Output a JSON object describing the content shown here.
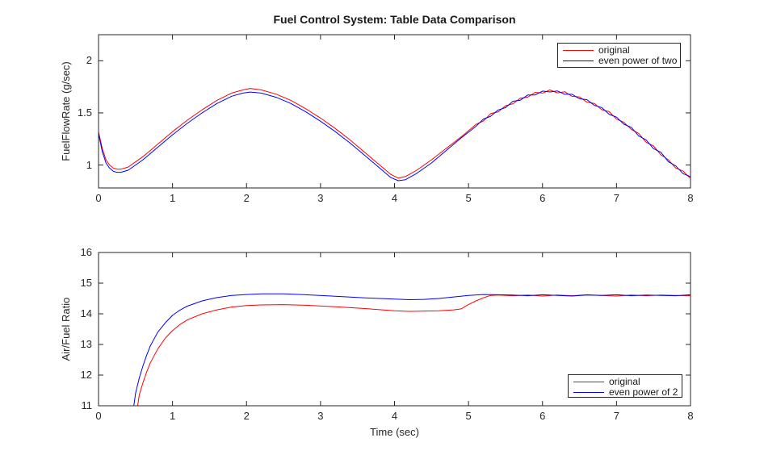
{
  "figure_title": "Fuel Control System: Table Data Comparison",
  "colors": {
    "original": "#ff0000",
    "quantized": "#0000ff",
    "axis": "#262626",
    "background": "#ffffff"
  },
  "chart_data": [
    {
      "type": "line",
      "title": "Fuel Control System: Table Data Comparison",
      "xlabel": "",
      "ylabel": "FuelFlowRate (g/sec)",
      "xlim": [
        0,
        8
      ],
      "ylim": [
        0.78,
        2.25
      ],
      "xticks": [
        0,
        1,
        2,
        3,
        4,
        5,
        6,
        7,
        8
      ],
      "xtick_labels": [
        "0",
        "1",
        "2",
        "3",
        "4",
        "5",
        "6",
        "7",
        "8"
      ],
      "yticks": [
        1,
        1.5,
        2
      ],
      "ytick_labels": [
        "1",
        "1.5",
        "2"
      ],
      "grid": false,
      "legend": {
        "position": "top-right",
        "entries": [
          "original",
          "even power of two"
        ]
      },
      "series": [
        {
          "name": "original",
          "color": "#ff0000",
          "x": [
            0,
            0.05,
            0.1,
            0.15,
            0.2,
            0.25,
            0.3,
            0.4,
            0.5,
            0.6,
            0.8,
            1,
            1.2,
            1.4,
            1.6,
            1.8,
            1.95,
            2.05,
            2.2,
            2.4,
            2.6,
            2.8,
            3,
            3.2,
            3.4,
            3.6,
            3.8,
            3.95,
            4.05,
            4.15,
            4.3,
            4.5,
            4.7,
            4.9,
            5.1,
            5.2,
            5.3,
            5.4,
            5.5,
            5.6,
            5.7,
            5.8,
            5.9,
            6,
            6.1,
            6.2,
            6.3,
            6.4,
            6.5,
            6.6,
            6.7,
            6.8,
            6.9,
            7,
            7.1,
            7.2,
            7.3,
            7.4,
            7.5,
            7.6,
            7.7,
            7.8,
            7.9,
            8
          ],
          "y": [
            1.32,
            1.16,
            1.05,
            1.0,
            0.97,
            0.96,
            0.96,
            0.98,
            1.03,
            1.08,
            1.2,
            1.32,
            1.43,
            1.53,
            1.62,
            1.69,
            1.72,
            1.735,
            1.72,
            1.68,
            1.62,
            1.54,
            1.45,
            1.35,
            1.24,
            1.12,
            1.0,
            0.91,
            0.875,
            0.89,
            0.95,
            1.05,
            1.16,
            1.27,
            1.39,
            1.422,
            1.493,
            1.509,
            1.568,
            1.588,
            1.641,
            1.651,
            1.697,
            1.69,
            1.72,
            1.692,
            1.703,
            1.659,
            1.653,
            1.603,
            1.591,
            1.531,
            1.512,
            1.44,
            1.41,
            1.342,
            1.303,
            1.219,
            1.182,
            1.098,
            1.051,
            0.971,
            0.942,
            0.87
          ]
        },
        {
          "name": "even power of two",
          "color": "#0000ff",
          "x": [
            0,
            0.05,
            0.1,
            0.15,
            0.2,
            0.25,
            0.3,
            0.4,
            0.5,
            0.6,
            0.8,
            1,
            1.2,
            1.4,
            1.6,
            1.8,
            1.95,
            2.05,
            2.2,
            2.4,
            2.6,
            2.8,
            3,
            3.2,
            3.4,
            3.6,
            3.8,
            3.95,
            4.05,
            4.15,
            4.3,
            4.5,
            4.7,
            4.9,
            5.1,
            5.2,
            5.3,
            5.4,
            5.5,
            5.6,
            5.7,
            5.8,
            5.9,
            6,
            6.1,
            6.2,
            6.3,
            6.4,
            6.5,
            6.6,
            6.7,
            6.8,
            6.9,
            7,
            7.1,
            7.2,
            7.3,
            7.4,
            7.5,
            7.6,
            7.7,
            7.8,
            7.9,
            8
          ],
          "y": [
            1.3,
            1.13,
            1.02,
            0.97,
            0.94,
            0.93,
            0.93,
            0.95,
            1.0,
            1.05,
            1.17,
            1.29,
            1.4,
            1.5,
            1.59,
            1.66,
            1.69,
            1.7,
            1.69,
            1.65,
            1.59,
            1.51,
            1.42,
            1.32,
            1.21,
            1.09,
            0.97,
            0.88,
            0.85,
            0.86,
            0.92,
            1.02,
            1.14,
            1.26,
            1.371,
            1.441,
            1.468,
            1.528,
            1.55,
            1.612,
            1.622,
            1.671,
            1.672,
            1.709,
            1.701,
            1.711,
            1.678,
            1.678,
            1.635,
            1.627,
            1.572,
            1.551,
            1.487,
            1.459,
            1.391,
            1.362,
            1.278,
            1.241,
            1.157,
            1.122,
            1.032,
            0.991,
            0.917,
            0.889
          ]
        }
      ]
    },
    {
      "type": "line",
      "title": "",
      "xlabel": "Time (sec)",
      "ylabel": "Air/Fuel Ratio",
      "xlim": [
        0,
        8
      ],
      "ylim": [
        11,
        16
      ],
      "xticks": [
        0,
        1,
        2,
        3,
        4,
        5,
        6,
        7,
        8
      ],
      "xtick_labels": [
        "0",
        "1",
        "2",
        "3",
        "4",
        "5",
        "6",
        "7",
        "8"
      ],
      "yticks": [
        11,
        12,
        13,
        14,
        15,
        16
      ],
      "ytick_labels": [
        "11",
        "12",
        "13",
        "14",
        "15",
        "16"
      ],
      "grid": false,
      "legend": {
        "position": "bottom-right",
        "entries": [
          "original",
          "even power of 2"
        ]
      },
      "series": [
        {
          "name": "original",
          "color": "#ff0000",
          "x": [
            0.47,
            0.55,
            0.6,
            0.65,
            0.7,
            0.8,
            0.9,
            1,
            1.1,
            1.2,
            1.4,
            1.6,
            1.8,
            2,
            2.2,
            2.5,
            2.8,
            3.2,
            3.6,
            4,
            4.2,
            4.4,
            4.6,
            4.8,
            4.9,
            5,
            5.1,
            5.2,
            5.3,
            5.4,
            5.6,
            5.8,
            6,
            6.2,
            6.4,
            6.6,
            6.8,
            7,
            7.2,
            7.4,
            7.6,
            7.8,
            8
          ],
          "y": [
            10.0,
            11.35,
            11.75,
            12.1,
            12.4,
            12.85,
            13.2,
            13.45,
            13.65,
            13.8,
            14.0,
            14.13,
            14.22,
            14.27,
            14.29,
            14.3,
            14.28,
            14.23,
            14.17,
            14.1,
            14.08,
            14.09,
            14.1,
            14.13,
            14.16,
            14.3,
            14.42,
            14.52,
            14.6,
            14.61,
            14.59,
            14.61,
            14.58,
            14.61,
            14.59,
            14.62,
            14.6,
            14.58,
            14.61,
            14.59,
            14.61,
            14.6,
            14.59
          ]
        },
        {
          "name": "even power of 2",
          "color": "#0000ff",
          "x": [
            0.42,
            0.5,
            0.55,
            0.6,
            0.65,
            0.7,
            0.8,
            0.9,
            1,
            1.1,
            1.2,
            1.4,
            1.6,
            1.8,
            2,
            2.2,
            2.5,
            2.8,
            3.2,
            3.6,
            4,
            4.2,
            4.4,
            4.6,
            4.8,
            5,
            5.2,
            5.4,
            5.6,
            5.8,
            6,
            6.2,
            6.4,
            6.6,
            6.8,
            7,
            7.2,
            7.4,
            7.6,
            7.8,
            8
          ],
          "y": [
            10.0,
            11.4,
            11.9,
            12.3,
            12.65,
            12.95,
            13.4,
            13.7,
            13.95,
            14.12,
            14.25,
            14.42,
            14.53,
            14.6,
            14.63,
            14.65,
            14.65,
            14.62,
            14.57,
            14.52,
            14.48,
            14.46,
            14.47,
            14.5,
            14.55,
            14.6,
            14.63,
            14.62,
            14.61,
            14.59,
            14.62,
            14.6,
            14.58,
            14.61,
            14.6,
            14.62,
            14.59,
            14.61,
            14.6,
            14.59,
            14.62
          ]
        }
      ]
    }
  ]
}
